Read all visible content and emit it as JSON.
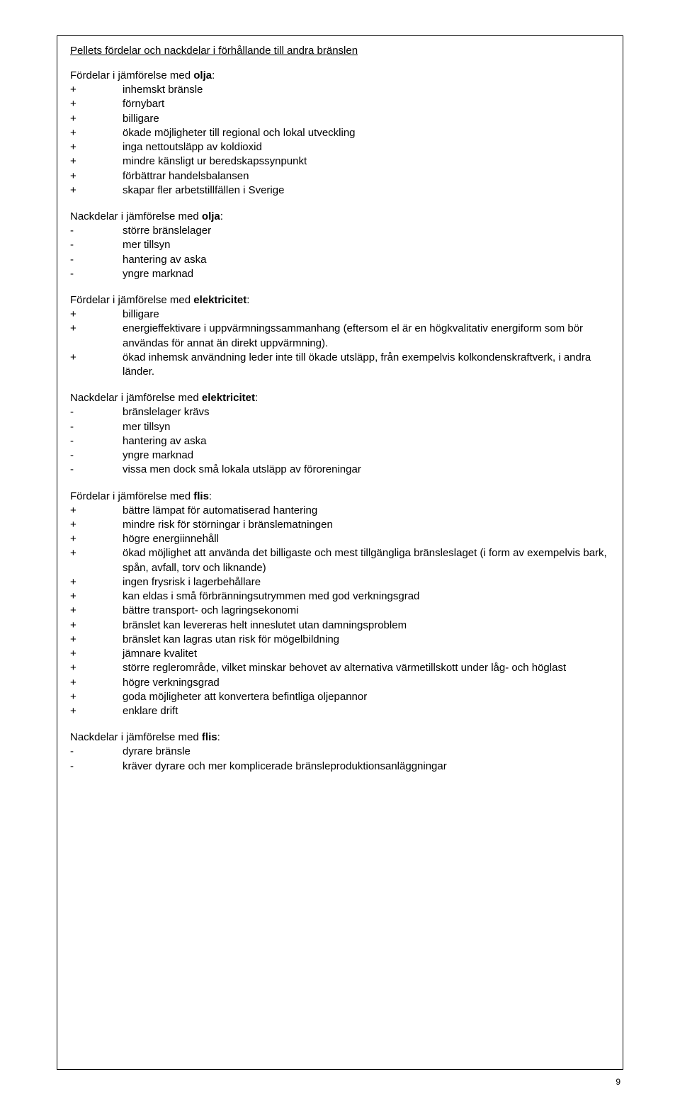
{
  "title": "Pellets fördelar och nackdelar i förhållande till andra bränslen",
  "pageNumber": "9",
  "sections": [
    {
      "heading_prefix": "Fördelar i jämförelse med ",
      "heading_bold": "olja",
      "heading_suffix": ":",
      "items": [
        {
          "sign": "+",
          "text": "inhemskt bränsle"
        },
        {
          "sign": "+",
          "text": "förnybart"
        },
        {
          "sign": "+",
          "text": "billigare"
        },
        {
          "sign": "+",
          "text": "ökade möjligheter till regional och lokal utveckling"
        },
        {
          "sign": "+",
          "text": "inga nettoutsläpp av koldioxid"
        },
        {
          "sign": "+",
          "text": "mindre känsligt ur beredskapssynpunkt"
        },
        {
          "sign": "+",
          "text": "förbättrar handelsbalansen"
        },
        {
          "sign": "+",
          "text": "skapar fler arbetstillfällen i Sverige"
        }
      ]
    },
    {
      "heading_prefix": "Nackdelar i jämförelse med ",
      "heading_bold": "olja",
      "heading_suffix": ":",
      "items": [
        {
          "sign": "-",
          "text": "större bränslelager"
        },
        {
          "sign": "-",
          "text": "mer tillsyn"
        },
        {
          "sign": "-",
          "text": "hantering av aska"
        },
        {
          "sign": "-",
          "text": "yngre marknad"
        }
      ]
    },
    {
      "heading_prefix": "Fördelar i jämförelse med ",
      "heading_bold": "elektricitet",
      "heading_suffix": ":",
      "items": [
        {
          "sign": "+",
          "text": "billigare"
        },
        {
          "sign": "+",
          "text": "energieffektivare i uppvärmningssammanhang (eftersom el är en högkvalitativ energiform som bör användas för annat än direkt uppvärmning)."
        },
        {
          "sign": "+",
          "text": "ökad inhemsk användning leder inte till ökade utsläpp, från exempelvis kolkondenskraftverk, i andra länder."
        }
      ]
    },
    {
      "heading_prefix": "Nackdelar i jämförelse med ",
      "heading_bold": "elektricitet",
      "heading_suffix": ":",
      "items": [
        {
          "sign": "-",
          "text": "bränslelager krävs"
        },
        {
          "sign": "-",
          "text": "mer tillsyn"
        },
        {
          "sign": "-",
          "text": "hantering av aska"
        },
        {
          "sign": "-",
          "text": "yngre marknad"
        },
        {
          "sign": "-",
          "text": "vissa men dock små lokala utsläpp av föroreningar"
        }
      ]
    },
    {
      "heading_prefix": "Fördelar i jämförelse med ",
      "heading_bold": "flis",
      "heading_suffix": ":",
      "items": [
        {
          "sign": "+",
          "text": "bättre lämpat för automatiserad hantering"
        },
        {
          "sign": "+",
          "text": "mindre risk för störningar i bränslematningen"
        },
        {
          "sign": "+",
          "text": "högre energiinnehåll"
        },
        {
          "sign": "+",
          "text": "ökad möjlighet att använda det billigaste och mest tillgängliga bränsleslaget (i form av exempelvis bark, spån, avfall, torv och liknande)"
        },
        {
          "sign": "+",
          "text": "ingen frysrisk i lagerbehållare"
        },
        {
          "sign": "+",
          "text": "kan eldas i små förbränningsutrymmen med god verkningsgrad"
        },
        {
          "sign": "+",
          "text": "bättre transport- och lagringsekonomi"
        },
        {
          "sign": "+",
          "text": "bränslet kan levereras helt inneslutet utan damningsproblem"
        },
        {
          "sign": "+",
          "text": "bränslet kan lagras utan risk för mögelbildning"
        },
        {
          "sign": "+",
          "text": "jämnare kvalitet"
        },
        {
          "sign": "+",
          "text": "större reglerområde, vilket minskar behovet av alternativa värmetillskott under låg- och höglast"
        },
        {
          "sign": "+",
          "text": "högre verkningsgrad"
        },
        {
          "sign": "+",
          "text": "goda möjligheter att konvertera befintliga oljepannor"
        },
        {
          "sign": "+",
          "text": "enklare drift"
        }
      ]
    },
    {
      "heading_prefix": "Nackdelar i jämförelse med ",
      "heading_bold": "flis",
      "heading_suffix": ":",
      "items": [
        {
          "sign": "-",
          "text": "dyrare bränsle"
        },
        {
          "sign": "-",
          "text": "kräver dyrare och mer komplicerade bränsleproduktionsanläggningar"
        }
      ]
    }
  ]
}
